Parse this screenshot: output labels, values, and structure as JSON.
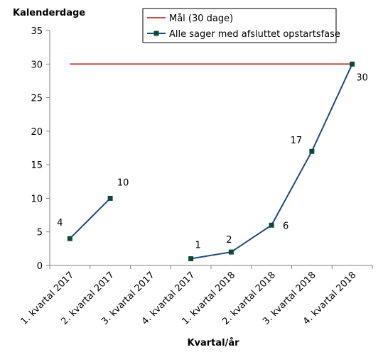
{
  "chart_data": {
    "type": "line",
    "ylabel": "Kalenderdage",
    "xlabel": "Kvartal/år",
    "ylim": [
      0,
      35
    ],
    "yticks": [
      0,
      5,
      10,
      15,
      20,
      25,
      30,
      35
    ],
    "categories": [
      "1. kvartal 2017",
      "2. kvartal 2017",
      "3. kvartal 2017",
      "4. kvartal 2017",
      "1. kvartal 2018",
      "2. kvartal 2018",
      "3. kvartal 2018",
      "4. kvartal 2018"
    ],
    "series": [
      {
        "name": "Mål (30 dage)",
        "color": "#C0504D",
        "values": [
          30,
          30,
          30,
          30,
          30,
          30,
          30,
          30
        ],
        "markers": false,
        "data_labels": false
      },
      {
        "name": "Alle sager med afsluttet opstartsfase",
        "color": "#1F497D",
        "marker_color": "#0B4A3A",
        "values": [
          4,
          10,
          null,
          1,
          2,
          6,
          17,
          30
        ],
        "markers": true,
        "data_labels": true
      }
    ],
    "legend_position": "top-right",
    "grid": false
  }
}
